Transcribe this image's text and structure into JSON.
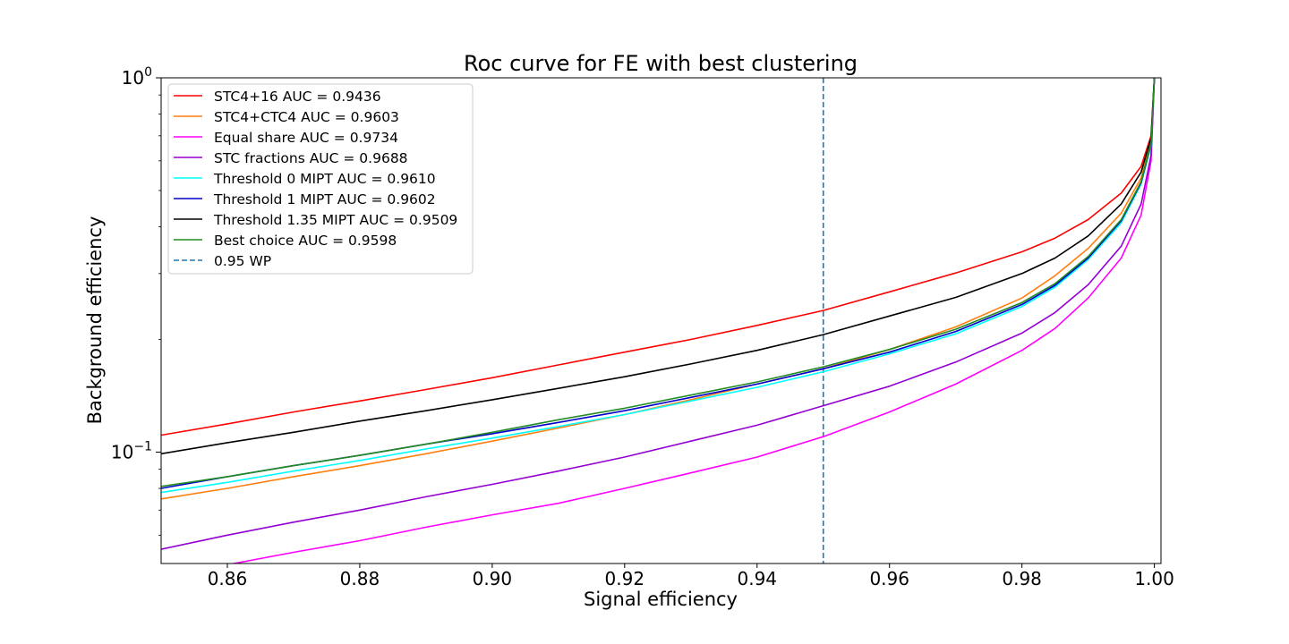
{
  "chart_data": {
    "type": "line",
    "title": "Roc curve for FE with best clustering",
    "xlabel": "Signal efficiency",
    "ylabel": "Background efficiency",
    "xlim": [
      0.85,
      1.001
    ],
    "ylim": [
      0.0504,
      1.0
    ],
    "yscale": "log",
    "grid": false,
    "legend_position": "top-left",
    "x_ticks": [
      "0.86",
      "0.88",
      "0.90",
      "0.92",
      "0.94",
      "0.96",
      "0.98",
      "1.00"
    ],
    "x_tick_values": [
      0.86,
      0.88,
      0.9,
      0.92,
      0.94,
      0.96,
      0.98,
      1.0
    ],
    "y_ticks": [
      {
        "value": 1.0,
        "base": "10",
        "exp": "0"
      },
      {
        "value": 0.1,
        "base": "10",
        "exp": "−1"
      }
    ],
    "x": [
      0.85,
      0.86,
      0.87,
      0.88,
      0.89,
      0.9,
      0.91,
      0.92,
      0.93,
      0.94,
      0.95,
      0.96,
      0.97,
      0.98,
      0.985,
      0.99,
      0.995,
      0.998,
      0.9995,
      1.0
    ],
    "series": [
      {
        "name": "STC4+16 AUC = 0.9436",
        "color": "#ff0000",
        "values": [
          0.111,
          0.119,
          0.128,
          0.137,
          0.147,
          0.158,
          0.171,
          0.185,
          0.2,
          0.218,
          0.239,
          0.268,
          0.301,
          0.343,
          0.373,
          0.418,
          0.492,
          0.58,
          0.7,
          1.0
        ]
      },
      {
        "name": "STC4+CTC4 AUC = 0.9603",
        "color": "#ff7f0e",
        "values": [
          0.075,
          0.08,
          0.086,
          0.092,
          0.099,
          0.107,
          0.116,
          0.126,
          0.138,
          0.152,
          0.167,
          0.188,
          0.216,
          0.258,
          0.296,
          0.35,
          0.435,
          0.54,
          0.68,
          1.0
        ]
      },
      {
        "name": "Equal share AUC = 0.9734",
        "color": "#ff00ff",
        "values": [
          0.046,
          0.05,
          0.054,
          0.058,
          0.063,
          0.068,
          0.073,
          0.08,
          0.088,
          0.097,
          0.11,
          0.128,
          0.152,
          0.187,
          0.214,
          0.258,
          0.33,
          0.43,
          0.6,
          1.0
        ]
      },
      {
        "name": "STC fractions AUC = 0.9688",
        "color": "#9400d3",
        "values": [
          0.055,
          0.06,
          0.065,
          0.07,
          0.076,
          0.082,
          0.089,
          0.097,
          0.107,
          0.118,
          0.133,
          0.15,
          0.174,
          0.208,
          0.236,
          0.28,
          0.355,
          0.46,
          0.62,
          1.0
        ]
      },
      {
        "name": "Threshold 0 MIPT AUC = 0.9610",
        "color": "#00ffff",
        "values": [
          0.078,
          0.083,
          0.089,
          0.095,
          0.102,
          0.109,
          0.117,
          0.126,
          0.137,
          0.149,
          0.164,
          0.183,
          0.207,
          0.245,
          0.276,
          0.327,
          0.41,
          0.52,
          0.66,
          1.0
        ]
      },
      {
        "name": "Threshold 1 MIPT AUC = 0.9602",
        "color": "#0000cd",
        "values": [
          0.08,
          0.086,
          0.092,
          0.098,
          0.105,
          0.112,
          0.12,
          0.129,
          0.14,
          0.152,
          0.167,
          0.185,
          0.21,
          0.248,
          0.279,
          0.33,
          0.415,
          0.525,
          0.665,
          1.0
        ]
      },
      {
        "name": "Threshold 1.35 MIPT AUC = 0.9509",
        "color": "#000000",
        "values": [
          0.099,
          0.106,
          0.113,
          0.121,
          0.129,
          0.138,
          0.148,
          0.159,
          0.172,
          0.187,
          0.206,
          0.231,
          0.259,
          0.3,
          0.33,
          0.378,
          0.46,
          0.56,
          0.69,
          1.0
        ]
      },
      {
        "name": "Best choice AUC = 0.9598",
        "color": "#228b22",
        "values": [
          0.081,
          0.086,
          0.092,
          0.098,
          0.105,
          0.113,
          0.122,
          0.131,
          0.142,
          0.154,
          0.169,
          0.188,
          0.213,
          0.251,
          0.282,
          0.333,
          0.418,
          0.528,
          0.668,
          1.0
        ]
      }
    ],
    "annotations": [
      {
        "type": "vline",
        "x": 0.95,
        "style": "dashed",
        "color": "#1f77b4",
        "label": "0.95 WP"
      }
    ]
  }
}
